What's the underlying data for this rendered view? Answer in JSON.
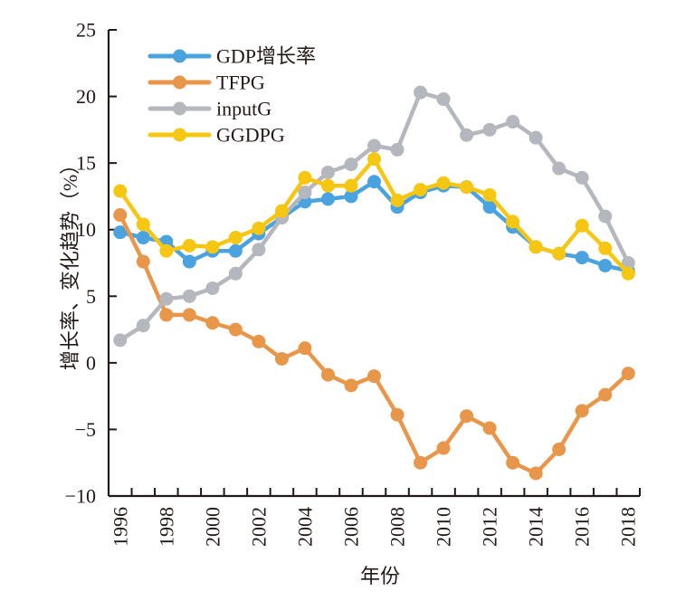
{
  "chart_data": {
    "type": "line",
    "title": "",
    "xlabel": "年份",
    "ylabel": "增长率、变化趋势（%）",
    "ylim": [
      -10,
      25
    ],
    "yticks": [
      -10,
      -5,
      0,
      5,
      10,
      15,
      20,
      25
    ],
    "ytick_labels": [
      "−10",
      "−5",
      "0",
      "5",
      "10",
      "15",
      "20",
      "25"
    ],
    "x": [
      1996,
      1997,
      1998,
      1999,
      2000,
      2001,
      2002,
      2003,
      2004,
      2005,
      2006,
      2007,
      2008,
      2009,
      2010,
      2011,
      2012,
      2013,
      2014,
      2015,
      2016,
      2017,
      2018
    ],
    "xtick_labels": [
      "1996",
      "1998",
      "2000",
      "2002",
      "2004",
      "2006",
      "2008",
      "2010",
      "2012",
      "2014",
      "2016",
      "2018"
    ],
    "grid": false,
    "legend": "top-left",
    "series": [
      {
        "name": "GDP增长率",
        "color": "#4aa3df",
        "values": [
          9.8,
          9.4,
          9.1,
          7.6,
          8.4,
          8.4,
          9.7,
          10.9,
          12.1,
          12.3,
          12.5,
          13.6,
          11.7,
          12.8,
          13.3,
          13.2,
          11.7,
          10.2,
          8.7,
          8.2,
          7.9,
          7.3,
          6.9
        ]
      },
      {
        "name": "TFPG",
        "color": "#e8964a",
        "values": [
          11.1,
          7.6,
          3.6,
          3.6,
          3.0,
          2.5,
          1.6,
          0.3,
          1.1,
          -0.9,
          -1.7,
          -1.0,
          -3.9,
          -7.5,
          -6.4,
          -4.0,
          -4.9,
          -7.5,
          -8.3,
          -6.5,
          -3.6,
          -2.4,
          -0.8
        ]
      },
      {
        "name": "inputG",
        "color": "#b4b7bd",
        "values": [
          1.7,
          2.8,
          4.8,
          5.0,
          5.6,
          6.7,
          8.5,
          10.9,
          12.8,
          14.3,
          14.9,
          16.3,
          16.0,
          20.3,
          19.8,
          17.1,
          17.5,
          18.1,
          16.9,
          14.6,
          13.9,
          11.0,
          7.5
        ]
      },
      {
        "name": "GGDPG",
        "color": "#f6c712",
        "values": [
          12.9,
          10.4,
          8.4,
          8.8,
          8.7,
          9.4,
          10.1,
          11.4,
          13.9,
          13.3,
          13.3,
          15.3,
          12.2,
          13.0,
          13.5,
          13.2,
          12.6,
          10.6,
          8.7,
          8.2,
          10.3,
          8.6,
          6.7
        ]
      }
    ]
  }
}
